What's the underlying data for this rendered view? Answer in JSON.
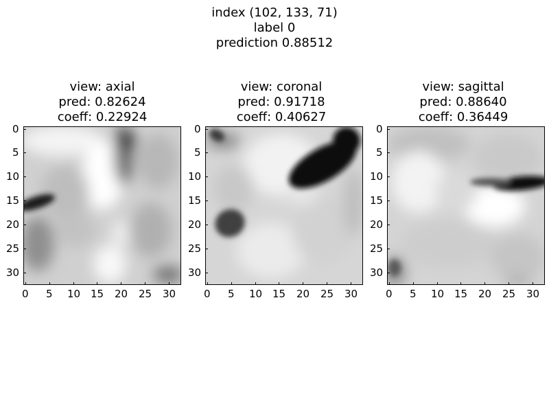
{
  "figure": {
    "title_lines": [
      "index (102, 133, 71)",
      "label 0",
      "prediction 0.88512"
    ]
  },
  "panels": [
    {
      "title_lines": [
        "view: axial",
        "pred: 0.82624",
        "coeff: 0.22924"
      ],
      "x_ticks": [
        "0",
        "5",
        "10",
        "15",
        "20",
        "25",
        "30"
      ],
      "y_ticks": [
        "0",
        "5",
        "10",
        "15",
        "20",
        "25",
        "30"
      ],
      "colormap": "gray"
    },
    {
      "title_lines": [
        "view: coronal",
        "pred: 0.91718",
        "coeff: 0.40627"
      ],
      "x_ticks": [
        "0",
        "5",
        "10",
        "15",
        "20",
        "25",
        "30"
      ],
      "y_ticks": [
        "0",
        "5",
        "10",
        "15",
        "20",
        "25",
        "30"
      ],
      "colormap": "gray"
    },
    {
      "title_lines": [
        "view: sagittal",
        "pred: 0.88640",
        "coeff: 0.36449"
      ],
      "x_ticks": [
        "0",
        "5",
        "10",
        "15",
        "20",
        "25",
        "30"
      ],
      "y_ticks": [
        "0",
        "5",
        "10",
        "15",
        "20",
        "25",
        "30"
      ],
      "colormap": "gray"
    }
  ]
}
